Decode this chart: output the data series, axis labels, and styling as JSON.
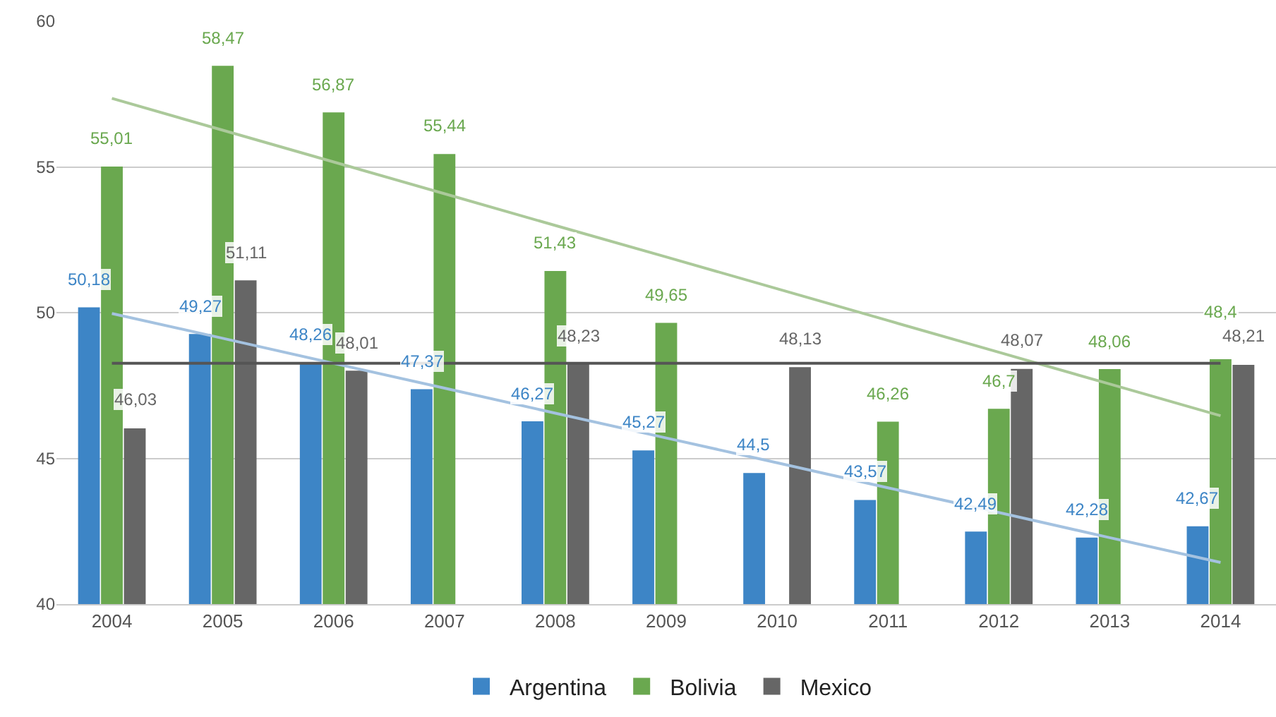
{
  "chart_data": {
    "type": "bar",
    "categories": [
      "2004",
      "2005",
      "2006",
      "2007",
      "2008",
      "2009",
      "2010",
      "2011",
      "2012",
      "2013",
      "2014"
    ],
    "series": [
      {
        "name": "Argentina",
        "color": "#3d85c6",
        "values": [
          50.18,
          49.27,
          48.26,
          47.37,
          46.27,
          45.27,
          44.5,
          43.57,
          42.49,
          42.28,
          42.67
        ],
        "value_labels": [
          "50,18",
          "49,27",
          "48,26",
          "47,37",
          "46,27",
          "45,27",
          "44,5",
          "43,57",
          "42,49",
          "42,28",
          "42,67"
        ]
      },
      {
        "name": "Bolivia",
        "color": "#6aa84f",
        "values": [
          55.01,
          58.47,
          56.87,
          55.44,
          51.43,
          49.65,
          null,
          46.26,
          46.7,
          48.06,
          48.4
        ],
        "value_labels": [
          "55,01",
          "58,47",
          "56,87",
          "55,44",
          "51,43",
          "49,65",
          null,
          "46,26",
          "46,7",
          "48,06",
          "48,4"
        ]
      },
      {
        "name": "Mexico",
        "color": "#666666",
        "values": [
          46.03,
          51.11,
          48.01,
          null,
          48.23,
          null,
          48.13,
          null,
          48.07,
          null,
          48.21
        ],
        "value_labels": [
          "46,03",
          "51,11",
          "48,01",
          null,
          "48,23",
          null,
          "48,13",
          null,
          "48,07",
          null,
          "48,21"
        ]
      },
      {
        "type": "line",
        "color": "#a4c2e0",
        "values": [
          49.97,
          49.12,
          48.26,
          47.41,
          46.55,
          45.7,
          44.85,
          43.99,
          43.14,
          42.28,
          41.43
        ]
      },
      {
        "type": "line",
        "color": "#abc99a",
        "values": [
          57.35,
          56.26,
          55.17,
          54.08,
          52.99,
          51.91,
          50.82,
          49.73,
          48.64,
          47.55,
          46.46
        ]
      },
      {
        "type": "line",
        "color": "#555555",
        "values": [
          48.26,
          48.26,
          48.26,
          48.26,
          48.26,
          48.26,
          48.26,
          48.26,
          48.26,
          48.26,
          48.26
        ]
      }
    ],
    "ylim": [
      40,
      60
    ],
    "yticks": [
      40,
      45,
      50,
      55,
      60
    ],
    "grid": "y",
    "legend": "bottom"
  }
}
